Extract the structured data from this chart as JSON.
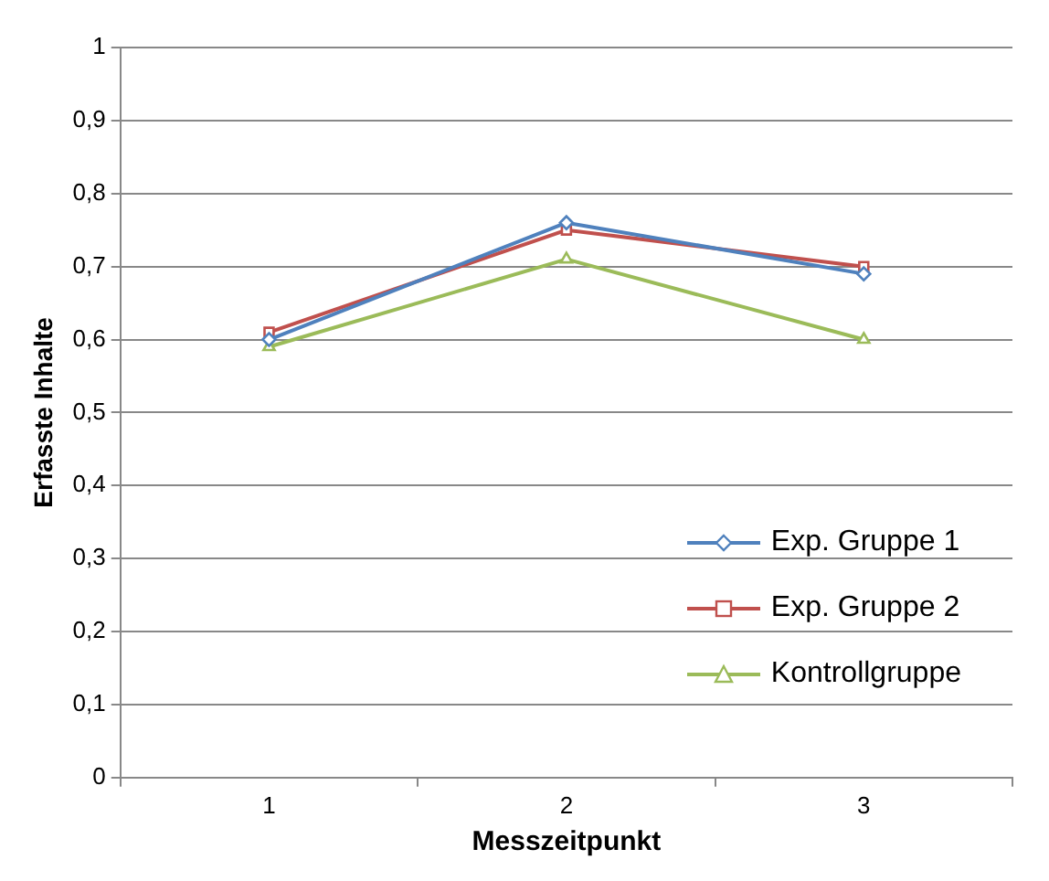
{
  "chart_data": {
    "type": "line",
    "xlabel": "Messzeitpunkt",
    "ylabel": "Erfasste Inhalte",
    "categories": [
      "1",
      "2",
      "3"
    ],
    "series": [
      {
        "name": "Exp. Gruppe 1",
        "color": "#4f81bd",
        "marker": "diamond",
        "values": [
          0.6,
          0.76,
          0.69
        ]
      },
      {
        "name": "Exp. Gruppe 2",
        "color": "#c0504d",
        "marker": "square",
        "values": [
          0.61,
          0.75,
          0.7
        ]
      },
      {
        "name": "Kontrollgruppe",
        "color": "#9bbb59",
        "marker": "triangle",
        "values": [
          0.59,
          0.71,
          0.6
        ]
      }
    ],
    "ylim": [
      0,
      1
    ],
    "yticks": [
      {
        "value": 0,
        "label": "0"
      },
      {
        "value": 0.1,
        "label": "0,1"
      },
      {
        "value": 0.2,
        "label": "0,2"
      },
      {
        "value": 0.3,
        "label": "0,3"
      },
      {
        "value": 0.4,
        "label": "0,4"
      },
      {
        "value": 0.5,
        "label": "0,5"
      },
      {
        "value": 0.6,
        "label": "0,6"
      },
      {
        "value": 0.7,
        "label": "0,7"
      },
      {
        "value": 0.8,
        "label": "0,8"
      },
      {
        "value": 0.9,
        "label": "0,9"
      },
      {
        "value": 1,
        "label": "1"
      }
    ],
    "grid": "y",
    "legend": "bottom right",
    "line_style": "solid"
  }
}
